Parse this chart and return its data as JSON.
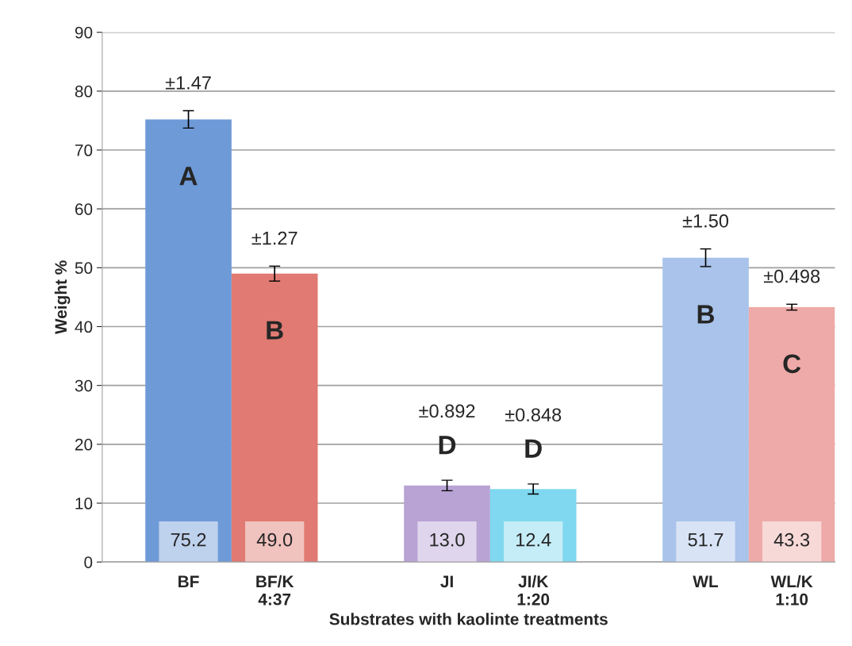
{
  "chart_data": {
    "type": "bar",
    "xlabel": "Substrates with kaolinte treatments",
    "ylabel": "Weight %",
    "categories": [
      "BF",
      "BF/K\n4:37",
      null,
      "JI",
      "JI/K\n1:20",
      null,
      "WL",
      "WL/K\n1:10"
    ],
    "values": [
      75.2,
      49.0,
      null,
      13.0,
      12.4,
      null,
      51.7,
      43.3
    ],
    "value_labels": [
      "75.2",
      "49.0",
      null,
      "13.0",
      "12.4",
      null,
      "51.7",
      "43.3"
    ],
    "errors": [
      1.47,
      1.27,
      null,
      0.892,
      0.848,
      null,
      1.5,
      0.498
    ],
    "colors": [
      "#6f9ad8",
      "#e07a72",
      null,
      "#b8a3d4",
      "#7fd8ef",
      null,
      "#a9c3ea",
      "#eeaaa8"
    ],
    "ylim": [
      0,
      90
    ],
    "yticks": [
      0,
      10,
      20,
      30,
      40,
      50,
      60,
      70,
      80,
      90
    ],
    "grid": "y",
    "annotations": [
      "±1.47",
      "A",
      "±1.27",
      "B",
      "±0.892",
      "D",
      "±0.848",
      "D",
      "±1.50",
      "B",
      "±0.498",
      "C"
    ]
  }
}
